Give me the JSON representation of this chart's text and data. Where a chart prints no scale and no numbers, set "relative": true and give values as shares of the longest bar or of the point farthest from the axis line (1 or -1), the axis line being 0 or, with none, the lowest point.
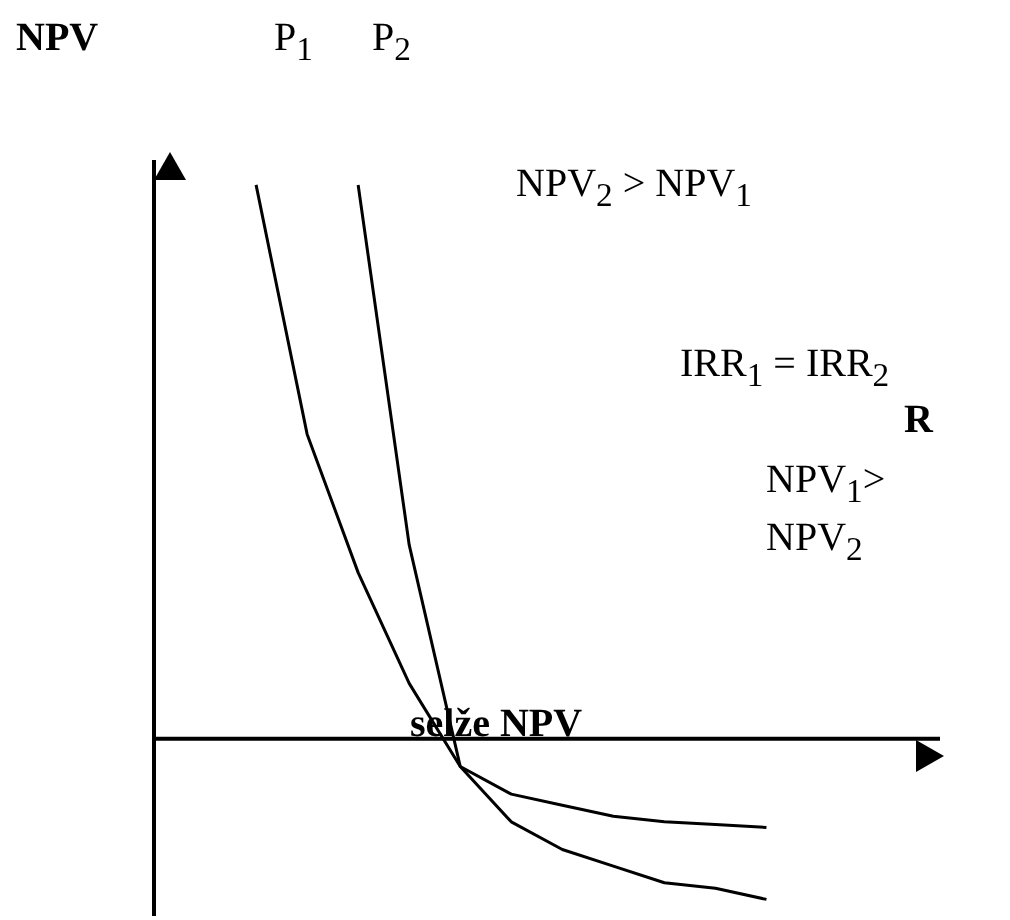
{
  "chart_data": {
    "type": "line",
    "relative": true,
    "ylabel": "NPV",
    "categories": [
      null,
      null,
      null,
      null,
      null,
      null,
      null,
      null,
      null,
      null,
      null
    ],
    "series": [
      {
        "name": "P$_{1}$",
        "color": "#000000",
        "values": [
          1,
          0.55,
          0.3,
          0.1,
          -0.05,
          -0.1,
          -0.12,
          -0.14,
          -0.15,
          -0.155,
          -0.16
        ]
      },
      {
        "name": "P$_{2}$",
        "color": "#000000",
        "values": [
          null,
          null,
          1,
          0.35,
          -0.05,
          -0.15,
          -0.2,
          -0.23,
          -0.26,
          -0.27,
          -0.29
        ]
      }
    ],
    "annotations": [
      "NPV$_{2}$ > NPV$_{1}$",
      "IRR$_{1}$ = IRR$_{2}$",
      "R",
      "NPV$_{1}$>\nNPV$_{2}$",
      "selže NPV"
    ],
    "marker": "none",
    "tick_labels": false
  }
}
